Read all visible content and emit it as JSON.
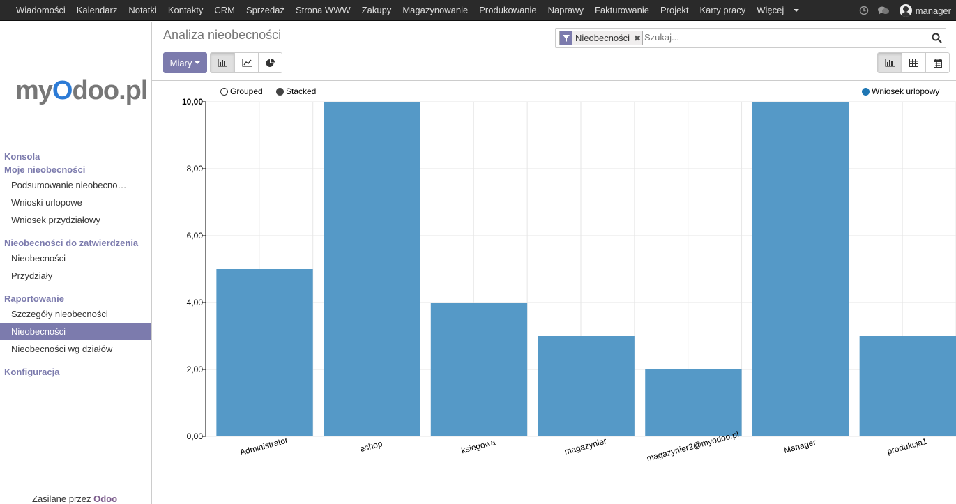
{
  "topnav": {
    "items": [
      "Wiadomości",
      "Kalendarz",
      "Notatki",
      "Kontakty",
      "CRM",
      "Sprzedaż",
      "Strona WWW",
      "Zakupy",
      "Magazynowanie",
      "Produkowanie",
      "Naprawy",
      "Fakturowanie",
      "Projekt",
      "Karty pracy",
      "Więcej"
    ],
    "user": "manager"
  },
  "sidebar": {
    "logo": {
      "part1": "my",
      "part2": "O",
      "part3": "doo.pl"
    },
    "sections": [
      {
        "label": "Konsola",
        "items": []
      },
      {
        "label": "Moje nieobecności",
        "items": [
          "Podsumowanie nieobecno…",
          "Wnioski urlopowe",
          "Wniosek przydziałowy"
        ]
      },
      {
        "label": "Nieobecności do zatwierdzenia",
        "items": [
          "Nieobecności",
          "Przydziały"
        ]
      },
      {
        "label": "Raportowanie",
        "items": [
          "Szczegóły nieobecności",
          "Nieobecności",
          "Nieobecności wg działów"
        ]
      },
      {
        "label": "Konfiguracja",
        "items": []
      }
    ],
    "active_item": "Nieobecności",
    "powered_prefix": "Zasilane przez",
    "powered_brand": "Odoo"
  },
  "header": {
    "title": "Analiza nieobecności",
    "search": {
      "facet": "Nieobecności",
      "placeholder": "Szukaj..."
    },
    "measures_label": "Miary"
  },
  "colors": {
    "accent": "#7c7bad",
    "bar": "#5599c7",
    "nav_bg": "#2a2a2a"
  },
  "legend": {
    "grouped": "Grouped",
    "stacked": "Stacked",
    "series": "Wniosek urlopowy"
  },
  "chart_data": {
    "type": "bar",
    "categories": [
      "Administrator",
      "eshop",
      "ksiegowa",
      "magazynier",
      "magazynier2@myodoo.pl",
      "Manager",
      "produkcja1"
    ],
    "series": [
      {
        "name": "Wniosek urlopowy",
        "values": [
          5,
          10,
          4,
          3,
          2,
          10,
          3
        ]
      }
    ],
    "ylim": [
      0,
      10
    ],
    "yticks": [
      "0,00",
      "2,00",
      "4,00",
      "6,00",
      "8,00",
      "10,00"
    ],
    "grid": true,
    "legend_position": "top-right"
  }
}
